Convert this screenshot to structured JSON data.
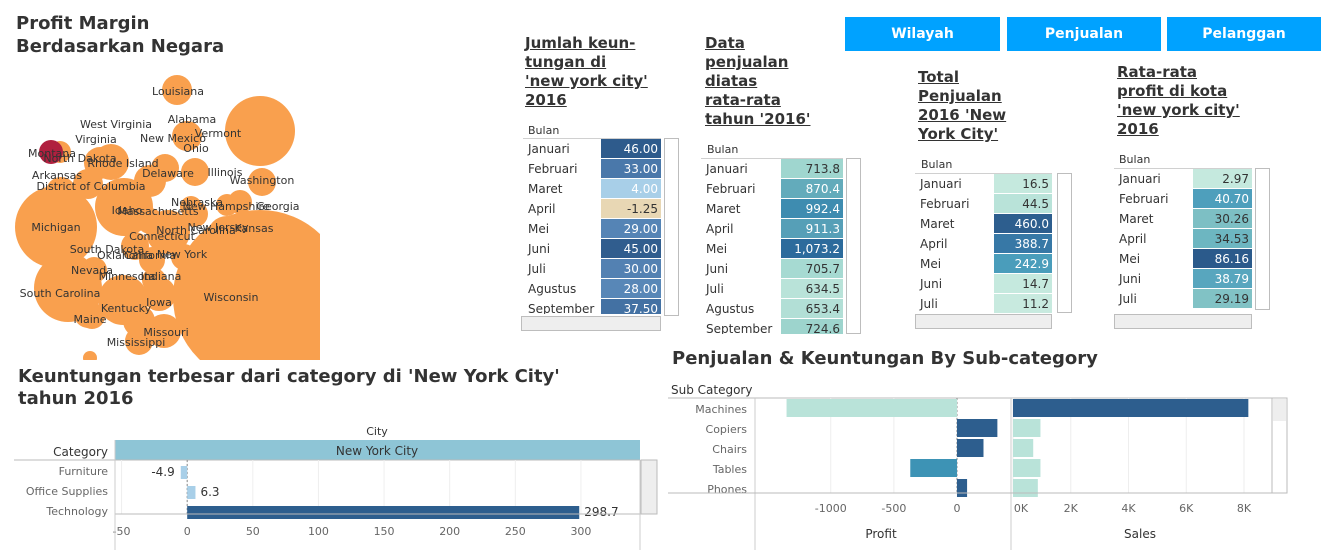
{
  "nav": {
    "wilayah": "Wilayah",
    "penjualan": "Penjualan",
    "pelanggan": "Pelanggan"
  },
  "bubble": {
    "title": "Profit Margin\nBerdasarkan Negara",
    "states": [
      {
        "name": "Wisconsin",
        "size": 100,
        "color": "#f9a04e"
      },
      {
        "name": "Michigan",
        "size": 64,
        "color": "#f9a04e"
      },
      {
        "name": "Vermont",
        "size": 30,
        "color": "#f9a04e"
      },
      {
        "name": "Louisiana",
        "size": 16,
        "color": "#f9a04e"
      },
      {
        "name": "Montana",
        "size": 12,
        "color": "#b0203f"
      },
      {
        "name": "South Carolina",
        "size": 32,
        "color": "#f9a04e"
      },
      {
        "name": "Idaho",
        "size": 30,
        "color": "#f9a04e"
      }
    ],
    "labels": [
      "Louisiana",
      "Alabama",
      "West Virginia",
      "Vermont",
      "Virginia",
      "New Mexico",
      "Ohio",
      "Montana",
      "North Dakota",
      "Rhode Island",
      "Illinois",
      "Arkansas",
      "Delaware",
      "Washington",
      "District of Columbia",
      "Nebraska",
      "Idaho",
      "Massachusetts",
      "New Hampshire",
      "Georgia",
      "Michigan",
      "North Carolina",
      "New Jersey",
      "Kansas",
      "Connecticut",
      "South Dakota",
      "Oklahoma",
      "California",
      "New York",
      "Nevada",
      "Minnesota",
      "Indiana",
      "South Carolina",
      "Wisconsin",
      "Kentucky",
      "Iowa",
      "Maine",
      "Missouri",
      "Mississippi"
    ]
  },
  "tables": [
    {
      "title": "Jumlah keun-\ntungan di\n'new york city'\n2016",
      "header": "Bulan",
      "rows": [
        {
          "label": "Januari",
          "value": "46.00",
          "color": "#2e5b8c",
          "text": "#fff"
        },
        {
          "label": "Februari",
          "value": "33.00",
          "color": "#4a78aa",
          "text": "#fff"
        },
        {
          "label": "Maret",
          "value": "4.00",
          "color": "#a8cfe8",
          "text": "#fff"
        },
        {
          "label": "April",
          "value": "-1.25",
          "color": "#e8d7b4",
          "text": "#333"
        },
        {
          "label": "Mei",
          "value": "29.00",
          "color": "#5584b5",
          "text": "#fff"
        },
        {
          "label": "Juni",
          "value": "45.00",
          "color": "#305d8e",
          "text": "#fff"
        },
        {
          "label": "Juli",
          "value": "30.00",
          "color": "#5381b2",
          "text": "#fff"
        },
        {
          "label": "Agustus",
          "value": "28.00",
          "color": "#5887b7",
          "text": "#fff"
        },
        {
          "label": "September",
          "value": "37.50",
          "color": "#4371a3",
          "text": "#fff"
        }
      ]
    },
    {
      "title": "Data\npenjualan\ndiatas\nrata-rata\ntahun '2016'",
      "header": "Bulan",
      "rows": [
        {
          "label": "Januari",
          "value": "713.8",
          "color": "#9fd6cf",
          "text": "#333"
        },
        {
          "label": "Februari",
          "value": "870.4",
          "color": "#63abbb",
          "text": "#fff"
        },
        {
          "label": "Maret",
          "value": "992.4",
          "color": "#3e8cb0",
          "text": "#fff"
        },
        {
          "label": "April",
          "value": "911.3",
          "color": "#569fb7",
          "text": "#fff"
        },
        {
          "label": "Mei",
          "value": "1,073.2",
          "color": "#2c6b9c",
          "text": "#fff"
        },
        {
          "label": "Juni",
          "value": "705.7",
          "color": "#a6dad2",
          "text": "#333"
        },
        {
          "label": "Juli",
          "value": "634.5",
          "color": "#b9e3d9",
          "text": "#333"
        },
        {
          "label": "Agustus",
          "value": "653.4",
          "color": "#b2dfd6",
          "text": "#333"
        },
        {
          "label": "September",
          "value": "724.6",
          "color": "#9dd4cd",
          "text": "#333"
        }
      ]
    },
    {
      "title": "Total\nPenjualan\n2016 'New\nYork City'",
      "header": "Bulan",
      "rows": [
        {
          "label": "Januari",
          "value": "16.5",
          "color": "#c5e9de",
          "text": "#333"
        },
        {
          "label": "Februari",
          "value": "44.5",
          "color": "#b9e3d9",
          "text": "#333"
        },
        {
          "label": "Maret",
          "value": "460.0",
          "color": "#2d5e8e",
          "text": "#fff"
        },
        {
          "label": "April",
          "value": "388.7",
          "color": "#3778a6",
          "text": "#fff"
        },
        {
          "label": "Mei",
          "value": "242.9",
          "color": "#4a9dbb",
          "text": "#fff"
        },
        {
          "label": "Juni",
          "value": "14.7",
          "color": "#c5e9de",
          "text": "#333"
        },
        {
          "label": "Juli",
          "value": "11.2",
          "color": "#c8eadf",
          "text": "#333"
        }
      ]
    },
    {
      "title": "Rata-rata\nprofit di kota\n'new york city'\n2016",
      "header": "Bulan",
      "rows": [
        {
          "label": "Januari",
          "value": "2.97",
          "color": "#c5e9de",
          "text": "#333"
        },
        {
          "label": "Februari",
          "value": "40.70",
          "color": "#4e9fbc",
          "text": "#fff"
        },
        {
          "label": "Maret",
          "value": "30.26",
          "color": "#7dbfc4",
          "text": "#333"
        },
        {
          "label": "April",
          "value": "34.53",
          "color": "#6db6c1",
          "text": "#333"
        },
        {
          "label": "Mei",
          "value": "86.16",
          "color": "#2b5a8b",
          "text": "#fff"
        },
        {
          "label": "Juni",
          "value": "38.79",
          "color": "#58a6be",
          "text": "#fff"
        },
        {
          "label": "Juli",
          "value": "29.19",
          "color": "#81c2c5",
          "text": "#333"
        }
      ]
    }
  ],
  "category_chart": {
    "title": "Keuntungan terbesar dari category di  'New York City'\ntahun 2016",
    "column_header": "City",
    "row_header": "Category",
    "city": "New York City",
    "chart_data": {
      "type": "bar",
      "categories": [
        "Furniture",
        "Office Supplies",
        "Technology"
      ],
      "values": [
        -4.9,
        6.3,
        298.7
      ],
      "value_labels": [
        "-4.9",
        "6.3",
        "298.7"
      ],
      "colors": [
        "#a8cfe8",
        "#a8cfe8",
        "#2d5e8e"
      ],
      "ticks": [
        "-50",
        "0",
        "50",
        "100",
        "150",
        "200",
        "250",
        "300"
      ],
      "xlim": [
        -55,
        345
      ]
    }
  },
  "subcat_chart": {
    "title": "Penjualan & Keuntungan By Sub-category",
    "row_header": "Sub Category",
    "profit_label": "Profit",
    "sales_label": "Sales",
    "chart_data": {
      "type": "bar",
      "categories": [
        "Machines",
        "Copiers",
        "Chairs",
        "Tables",
        "Phones"
      ],
      "series": [
        {
          "name": "Profit",
          "values": [
            -1350,
            320,
            210,
            -370,
            80
          ],
          "colors": [
            "#b9e3d9",
            "#2d5e8e",
            "#2d5e8e",
            "#3d93b5",
            "#2d5e8e"
          ]
        },
        {
          "name": "Sales",
          "values": [
            8150,
            950,
            700,
            950,
            860
          ],
          "colors": [
            "#2d5e8e",
            "#b9e3d9",
            "#b9e3d9",
            "#b9e3d9",
            "#b9e3d9"
          ]
        }
      ],
      "profit_ticks": [
        "-1000",
        "-500",
        "0"
      ],
      "sales_ticks": [
        "0K",
        "2K",
        "4K",
        "6K",
        "8K"
      ],
      "profit_xlim": [
        -1600,
        420
      ],
      "sales_xlim": [
        0,
        8900
      ]
    }
  }
}
